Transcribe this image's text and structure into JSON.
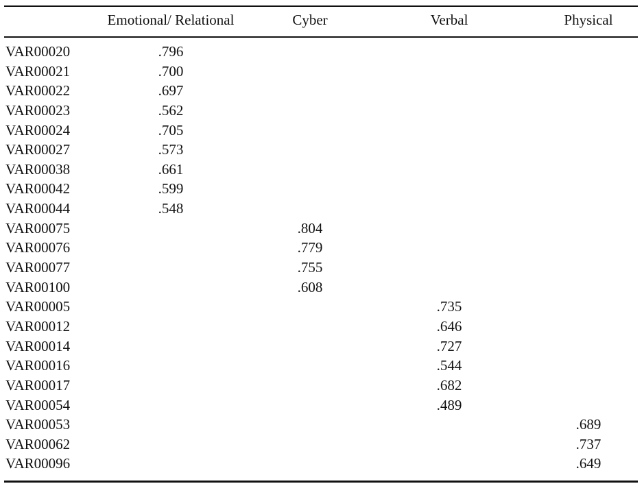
{
  "table": {
    "columns": [
      "",
      "Emotional/ Relational",
      "Cyber",
      "Verbal",
      "Physical"
    ],
    "rows": [
      {
        "variable": "VAR00020",
        "values": [
          ".796",
          "",
          "",
          ""
        ]
      },
      {
        "variable": "VAR00021",
        "values": [
          ".700",
          "",
          "",
          ""
        ]
      },
      {
        "variable": "VAR00022",
        "values": [
          ".697",
          "",
          "",
          ""
        ]
      },
      {
        "variable": "VAR00023",
        "values": [
          ".562",
          "",
          "",
          ""
        ]
      },
      {
        "variable": "VAR00024",
        "values": [
          ".705",
          "",
          "",
          ""
        ]
      },
      {
        "variable": "VAR00027",
        "values": [
          ".573",
          "",
          "",
          ""
        ]
      },
      {
        "variable": "VAR00038",
        "values": [
          ".661",
          "",
          "",
          ""
        ]
      },
      {
        "variable": "VAR00042",
        "values": [
          ".599",
          "",
          "",
          ""
        ]
      },
      {
        "variable": "VAR00044",
        "values": [
          ".548",
          "",
          "",
          ""
        ]
      },
      {
        "variable": "VAR00075",
        "values": [
          "",
          ".804",
          "",
          ""
        ]
      },
      {
        "variable": "VAR00076",
        "values": [
          "",
          ".779",
          "",
          ""
        ]
      },
      {
        "variable": "VAR00077",
        "values": [
          "",
          ".755",
          "",
          ""
        ]
      },
      {
        "variable": "VAR00100",
        "values": [
          "",
          ".608",
          "",
          ""
        ]
      },
      {
        "variable": "VAR00005",
        "values": [
          "",
          "",
          ".735",
          ""
        ]
      },
      {
        "variable": "VAR00012",
        "values": [
          "",
          "",
          ".646",
          ""
        ]
      },
      {
        "variable": "VAR00014",
        "values": [
          "",
          "",
          ".727",
          ""
        ]
      },
      {
        "variable": "VAR00016",
        "values": [
          "",
          "",
          ".544",
          ""
        ]
      },
      {
        "variable": "VAR00017",
        "values": [
          "",
          "",
          ".682",
          ""
        ]
      },
      {
        "variable": "VAR00054",
        "values": [
          "",
          "",
          ".489",
          ""
        ]
      },
      {
        "variable": "VAR00053",
        "values": [
          "",
          "",
          "",
          ".689"
        ]
      },
      {
        "variable": "VAR00062",
        "values": [
          "",
          "",
          "",
          ".737"
        ]
      },
      {
        "variable": "VAR00096",
        "values": [
          "",
          "",
          "",
          ".649"
        ]
      }
    ]
  }
}
